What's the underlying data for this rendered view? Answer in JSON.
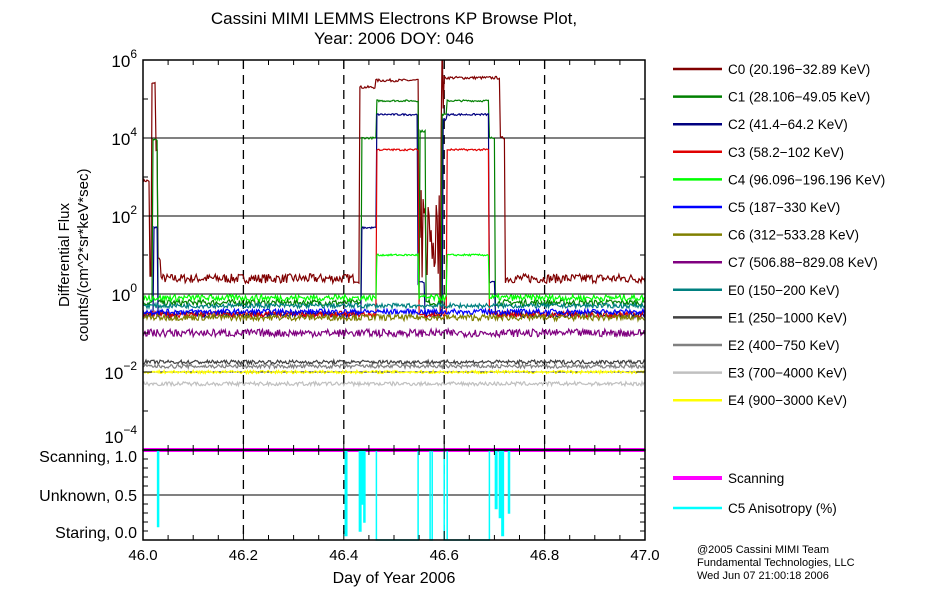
{
  "chart_data": {
    "type": "line",
    "title": [
      "Cassini MIMI LEMMS Electrons KP Browse Plot,",
      "Year: 2006 DOY: 046"
    ],
    "xlabel": "Day of Year 2006",
    "ylabel": [
      "Differential Flux",
      "counts/(cm^2*sr*keV*sec)"
    ],
    "xlim": [
      46.0,
      47.0
    ],
    "x_ticks": [
      "46.0",
      "46.2",
      "46.4",
      "46.6",
      "46.8",
      "47.0"
    ],
    "upper_panel": {
      "yscale": "log",
      "ylim": [
        0.0001,
        1000000.0
      ],
      "y_ticks": [
        {
          "base": "10",
          "exp": "6"
        },
        {
          "base": "10",
          "exp": "4"
        },
        {
          "base": "10",
          "exp": "2"
        },
        {
          "base": "10",
          "exp": "0"
        },
        {
          "base": "10",
          "exp": "−2"
        },
        {
          "base": "10",
          "exp": "−4"
        }
      ],
      "series": [
        {
          "name": "C0 (20.196−32.89 KeV)",
          "color": "#800000",
          "base": 2.5,
          "noise": 0.12,
          "segments": [
            [
              46.0,
              46.012,
              800
            ],
            [
              46.018,
              46.026,
              250000
            ],
            [
              46.026,
              46.03,
              5000
            ],
            [
              46.03,
              46.035,
              8
            ],
            [
              46.432,
              46.463,
              200000
            ],
            [
              46.463,
              46.548,
              300000
            ],
            [
              46.55,
              46.59,
              30
            ],
            [
              46.593,
              46.6,
              300000
            ],
            [
              46.6,
              46.712,
              350000
            ],
            [
              46.712,
              46.72,
              10000
            ]
          ]
        },
        {
          "name": "C1 (28.106−49.05 KeV)",
          "color": "#008000",
          "base": 0.6,
          "noise": 0.08,
          "segments": [
            [
              46.02,
              46.028,
              9000
            ],
            [
              46.436,
              46.466,
              10000
            ],
            [
              46.466,
              46.548,
              90000
            ],
            [
              46.552,
              46.562,
              15000
            ],
            [
              46.595,
              46.606,
              40000
            ],
            [
              46.606,
              46.689,
              90000
            ],
            [
              46.689,
              46.7,
              10000
            ]
          ]
        },
        {
          "name": "C2 (41.4−64.2 KeV)",
          "color": "#000080",
          "base": 0.3,
          "noise": 0.08,
          "segments": [
            [
              46.022,
              46.028,
              50
            ],
            [
              46.436,
              46.466,
              50
            ],
            [
              46.466,
              46.548,
              40000
            ],
            [
              46.548,
              46.56,
              2
            ],
            [
              46.598,
              46.606,
              30000
            ],
            [
              46.606,
              46.689,
              40000
            ],
            [
              46.689,
              46.7,
              2
            ]
          ]
        },
        {
          "name": "C3 (58.2−102 KeV)",
          "color": "#e00000",
          "base": 0.3,
          "noise": 0.08,
          "segments": [
            [
              46.466,
              46.548,
              5000
            ],
            [
              46.606,
              46.689,
              5000
            ]
          ]
        },
        {
          "name": "C4 (96.096−196.196 KeV)",
          "color": "#00ff00",
          "base": 0.8,
          "noise": 0.08,
          "segments": [
            [
              46.466,
              46.548,
              10
            ],
            [
              46.606,
              46.689,
              10
            ]
          ]
        },
        {
          "name": "C5 (187−330 KeV)",
          "color": "#0000ff",
          "base": 0.35,
          "noise": 0.07,
          "segments": []
        },
        {
          "name": "C6 (312−533.28 KeV)",
          "color": "#808000",
          "base": 0.25,
          "noise": 0.08,
          "segments": []
        },
        {
          "name": "C7 (506.88−829.08 KeV)",
          "color": "#800080",
          "base": 0.1,
          "noise": 0.1,
          "segments": []
        },
        {
          "name": "E0 (150−200 KeV)",
          "color": "#008080",
          "base": 0.5,
          "noise": 0.06,
          "segments": []
        },
        {
          "name": "E1 (250−1000 KeV)",
          "color": "#404040",
          "base": 0.018,
          "noise": 0.05,
          "segments": []
        },
        {
          "name": "E2 (400−750 KeV)",
          "color": "#808080",
          "base": 0.014,
          "noise": 0.05,
          "segments": []
        },
        {
          "name": "E3 (700−4000 KeV)",
          "color": "#c0c0c0",
          "base": 0.005,
          "noise": 0.05,
          "segments": []
        },
        {
          "name": "E4 (900−3000 KeV)",
          "color": "#ffff00",
          "base": 0.01,
          "noise": 0.04,
          "segments": []
        }
      ]
    },
    "lower_panel": {
      "ylim": [
        0.0,
        1.0
      ],
      "y_ticks": [
        "Scanning, 1.0",
        "Unknown, 0.5",
        "Staring, 0.0"
      ],
      "series": [
        {
          "name": "Scanning",
          "color": "#ff00ff",
          "value": 1.0
        },
        {
          "name": "C5 Anisotropy (%)",
          "color": "#00ffff",
          "dips": [
            [
              46.029,
              46.031,
              0.15
            ],
            [
              46.403,
              46.406,
              0.05
            ],
            [
              46.431,
              46.434,
              0.1
            ],
            [
              46.436,
              46.438,
              0.4
            ],
            [
              46.44,
              46.442,
              0.2
            ],
            [
              46.465,
              46.548,
              0.0
            ],
            [
              46.572,
              46.576,
              0.0
            ],
            [
              46.6,
              46.606,
              0.0
            ],
            [
              46.606,
              46.69,
              0.0
            ],
            [
              46.702,
              46.705,
              0.35
            ],
            [
              46.71,
              46.713,
              0.25
            ],
            [
              46.715,
              46.718,
              0.05
            ],
            [
              46.728,
              46.73,
              0.3
            ]
          ]
        }
      ]
    },
    "legend_placement": "right",
    "footer": [
      "@2005 Cassini MIMI Team",
      "Fundamental Technologies, LLC",
      "Wed Jun 07 21:00:18 2006"
    ]
  }
}
